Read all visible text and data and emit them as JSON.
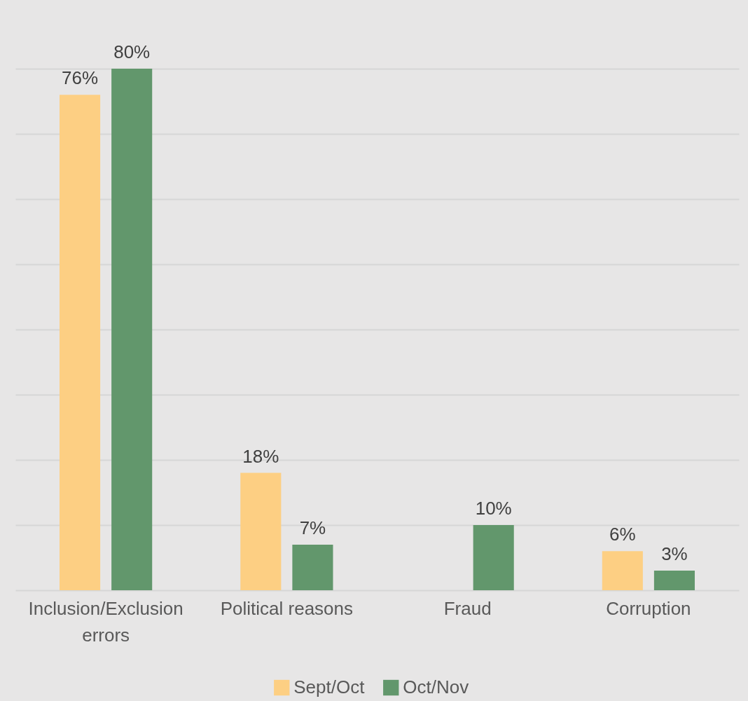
{
  "chart_data": {
    "type": "bar",
    "categories": [
      "Inclusion/Exclusion errors",
      "Political reasons",
      "Fraud",
      "Corruption"
    ],
    "series": [
      {
        "name": "Sept/Oct",
        "color": "#fdcf83",
        "values": [
          76,
          18,
          null,
          6
        ],
        "value_labels": [
          "76%",
          "18%",
          null,
          "6%"
        ]
      },
      {
        "name": "Oct/Nov",
        "color": "#62976c",
        "values": [
          80,
          7,
          10,
          3
        ],
        "value_labels": [
          "80%",
          "7%",
          "10%",
          "3%"
        ]
      }
    ],
    "ylim": [
      0,
      80
    ],
    "yticks": [
      {
        "value": 0,
        "label": null
      },
      {
        "value": 10,
        "label": null
      },
      {
        "value": 20,
        "label": null
      },
      {
        "value": 30,
        "label": null
      },
      {
        "value": 40,
        "label": null
      },
      {
        "value": 50,
        "label": null
      },
      {
        "value": 60,
        "label": null
      },
      {
        "value": 70,
        "label": null
      },
      {
        "value": 80,
        "label": null
      }
    ],
    "grid": "y",
    "legend": "bottom",
    "tick_labels": "x"
  }
}
